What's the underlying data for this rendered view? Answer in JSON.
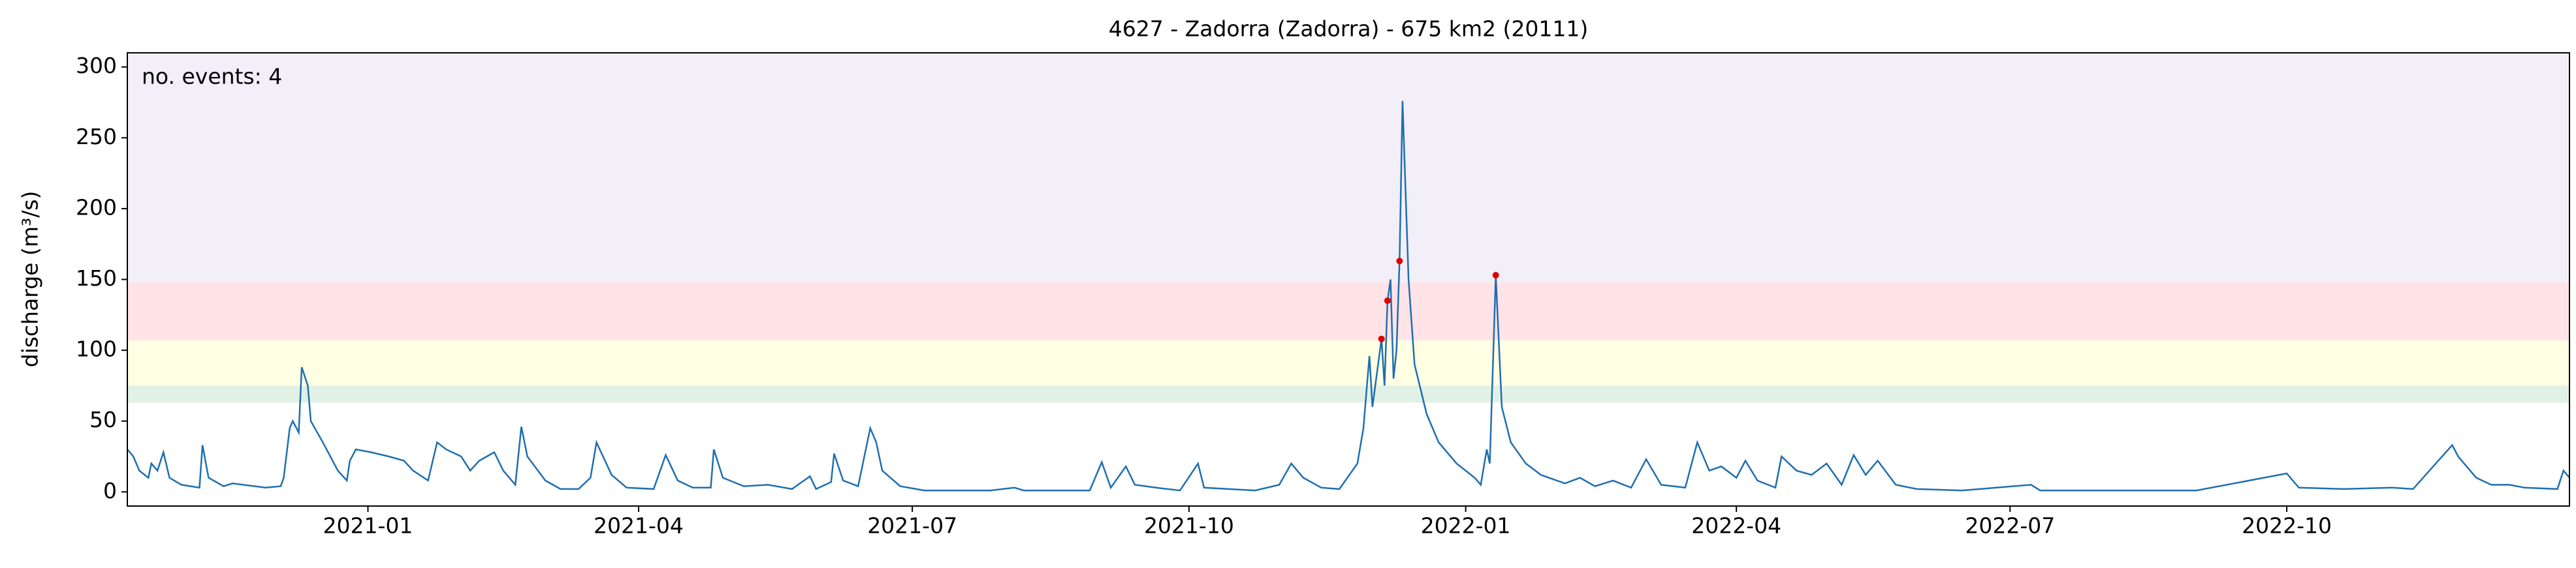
{
  "chart_data": {
    "type": "line",
    "title": "4627 - Zadorra (Zadorra) - 675 km2 (20111)",
    "ylabel": "discharge (m³/s)",
    "annotation": "no. events: 4",
    "annotation_color": "#e00000",
    "xlim": [
      0,
      812
    ],
    "xticks": [
      {
        "value": 80,
        "label": "2021-01"
      },
      {
        "value": 170,
        "label": "2021-04"
      },
      {
        "value": 261,
        "label": "2021-07"
      },
      {
        "value": 353,
        "label": "2021-10"
      },
      {
        "value": 445,
        "label": "2022-01"
      },
      {
        "value": 535,
        "label": "2022-04"
      },
      {
        "value": 626,
        "label": "2022-07"
      },
      {
        "value": 718,
        "label": "2022-10"
      }
    ],
    "ylim": [
      -10,
      310
    ],
    "yticks": [
      0,
      50,
      100,
      150,
      200,
      250,
      300
    ],
    "bands": [
      {
        "range": [
          148,
          310
        ],
        "color": "#f2eff9"
      },
      {
        "range": [
          107,
          148
        ],
        "color": "#ffe3e6"
      },
      {
        "range": [
          75,
          107
        ],
        "color": "#ffffe4"
      },
      {
        "range": [
          63,
          75
        ],
        "color": "#e2f1e5"
      }
    ],
    "series": [
      {
        "color": "#1f6fb0",
        "x": [
          0,
          2,
          4,
          7,
          8,
          10,
          12,
          14,
          18,
          24,
          25,
          27,
          32,
          35,
          46,
          51,
          52,
          54,
          55,
          57,
          58,
          60,
          61,
          65,
          70,
          73,
          74,
          76,
          81,
          87,
          92,
          95,
          100,
          103,
          106,
          111,
          114,
          117,
          122,
          125,
          129,
          131,
          133,
          139,
          144,
          150,
          154,
          156,
          161,
          166,
          175,
          179,
          183,
          188,
          194,
          195,
          198,
          205,
          213,
          221,
          227,
          229,
          234,
          235,
          238,
          243,
          247,
          249,
          251,
          257,
          265,
          287,
          295,
          298,
          320,
          324,
          327,
          332,
          335,
          342,
          350,
          356,
          358,
          375,
          383,
          387,
          391,
          397,
          403,
          409,
          411,
          413,
          414,
          417,
          418,
          419,
          420,
          421,
          422,
          423,
          424,
          426,
          428,
          432,
          436,
          442,
          448,
          450,
          452,
          453,
          455,
          457,
          460,
          465,
          470,
          478,
          483,
          488,
          494,
          500,
          505,
          510,
          518,
          522,
          526,
          530,
          535,
          538,
          542,
          548,
          550,
          555,
          560,
          565,
          570,
          574,
          578,
          582,
          588,
          595,
          610,
          633,
          636,
          688,
          718,
          722,
          737,
          753,
          760,
          773,
          775,
          781,
          786,
          792,
          797,
          808,
          810,
          812
        ],
        "values": [
          30,
          25,
          15,
          10,
          20,
          15,
          28,
          10,
          5,
          3,
          33,
          10,
          4,
          6,
          3,
          4,
          10,
          45,
          50,
          42,
          88,
          75,
          50,
          35,
          15,
          8,
          22,
          30,
          28,
          25,
          22,
          15,
          8,
          35,
          30,
          25,
          15,
          22,
          28,
          15,
          5,
          46,
          25,
          8,
          2,
          2,
          10,
          35,
          12,
          3,
          2,
          26,
          8,
          3,
          3,
          30,
          10,
          4,
          5,
          2,
          11,
          2,
          7,
          27,
          8,
          4,
          45,
          35,
          15,
          4,
          1,
          1,
          3,
          1,
          1,
          21,
          3,
          18,
          5,
          3,
          1,
          20,
          3,
          1,
          5,
          20,
          10,
          3,
          2,
          20,
          45,
          96,
          60,
          108,
          75,
          135,
          150,
          80,
          100,
          163,
          276,
          150,
          90,
          55,
          35,
          20,
          10,
          5,
          30,
          20,
          153,
          60,
          35,
          20,
          12,
          6,
          10,
          4,
          8,
          3,
          23,
          5,
          3,
          35,
          15,
          18,
          10,
          22,
          8,
          3,
          25,
          15,
          12,
          20,
          5,
          26,
          12,
          22,
          5,
          2,
          1,
          5,
          1,
          1,
          13,
          3,
          2,
          3,
          2,
          33,
          25,
          10,
          5,
          5,
          3,
          2,
          15,
          10
        ]
      }
    ],
    "events": {
      "color": "#e00000",
      "x": [
        417,
        419,
        423,
        455
      ],
      "values": [
        108,
        135,
        163,
        153
      ]
    }
  }
}
